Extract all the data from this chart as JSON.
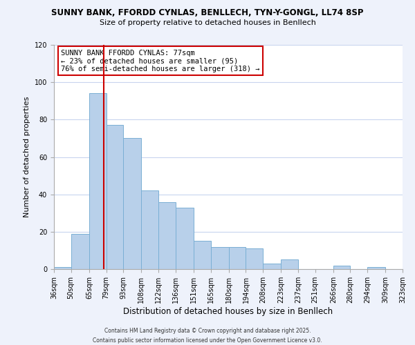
{
  "title1": "SUNNY BANK, FFORDD CYNLAS, BENLLECH, TYN-Y-GONGL, LL74 8SP",
  "title2": "Size of property relative to detached houses in Benllech",
  "xlabel": "Distribution of detached houses by size in Benllech",
  "ylabel": "Number of detached properties",
  "bins": [
    36,
    50,
    65,
    79,
    93,
    108,
    122,
    136,
    151,
    165,
    180,
    194,
    208,
    223,
    237,
    251,
    266,
    280,
    294,
    309,
    323
  ],
  "counts": [
    1,
    19,
    94,
    77,
    70,
    42,
    36,
    33,
    15,
    12,
    12,
    11,
    3,
    5,
    0,
    0,
    2,
    0,
    1,
    0,
    0
  ],
  "bar_color": "#b8d0ea",
  "bar_edge_color": "#7aafd4",
  "vline_x": 77,
  "vline_color": "#cc0000",
  "ylim": [
    0,
    120
  ],
  "yticks": [
    0,
    20,
    40,
    60,
    80,
    100,
    120
  ],
  "annotation_title": "SUNNY BANK FFORDD CYNLAS: 77sqm",
  "annotation_line1": "← 23% of detached houses are smaller (95)",
  "annotation_line2": "76% of semi-detached houses are larger (318) →",
  "footer1": "Contains HM Land Registry data © Crown copyright and database right 2025.",
  "footer2": "Contains public sector information licensed under the Open Government Licence v3.0.",
  "bg_color": "#eef2fb",
  "plot_bg_color": "#ffffff",
  "grid_color": "#c8d4ee"
}
